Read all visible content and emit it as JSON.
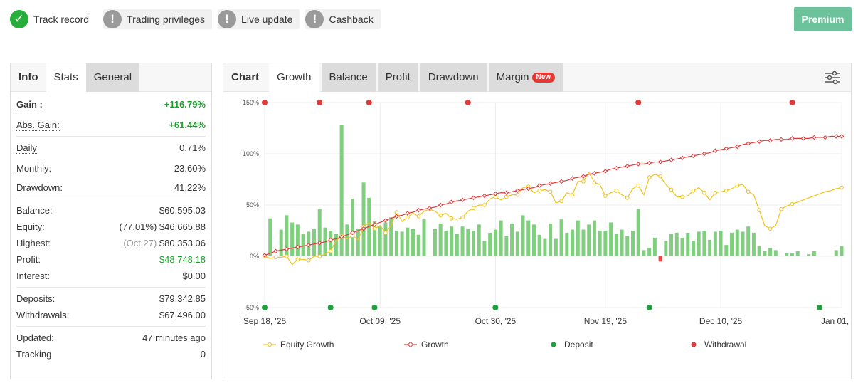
{
  "badges": [
    {
      "label": "Track record",
      "icon": "check-circle-icon",
      "status": "ok"
    },
    {
      "label": "Trading privileges",
      "icon": "exclamation-circle-icon",
      "status": "warn"
    },
    {
      "label": "Live update",
      "icon": "exclamation-circle-icon",
      "status": "warn"
    },
    {
      "label": "Cashback",
      "icon": "exclamation-circle-icon",
      "status": "warn"
    }
  ],
  "premium_label": "Premium",
  "left_tabs": [
    "Info",
    "Stats",
    "General"
  ],
  "stats": {
    "gain_label": "Gain :",
    "gain_value": "+116.79%",
    "abs_gain_label": "Abs. Gain:",
    "abs_gain_value": "+61.44%",
    "daily_label": "Daily",
    "daily_value": "0.71%",
    "monthly_label": "Monthly:",
    "monthly_value": "23.60%",
    "drawdown_label": "Drawdown:",
    "drawdown_value": "41.22%",
    "balance_label": "Balance:",
    "balance_value": "$60,595.03",
    "equity_label": "Equity:",
    "equity_pct": "(77.01%)",
    "equity_value": "$46,665.88",
    "highest_label": "Highest:",
    "highest_date": "(Oct 27)",
    "highest_value": "$80,353.06",
    "profit_label": "Profit:",
    "profit_value": "$48,748.18",
    "interest_label": "Interest:",
    "interest_value": "$0.00",
    "deposits_label": "Deposits:",
    "deposits_value": "$79,342.85",
    "withdrawals_label": "Withdrawals:",
    "withdrawals_value": "$67,496.00",
    "updated_label": "Updated:",
    "updated_value": "47 minutes ago",
    "tracking_label": "Tracking",
    "tracking_value": "0"
  },
  "right_tabs": [
    "Chart",
    "Growth",
    "Balance",
    "Profit",
    "Drawdown",
    "Margin"
  ],
  "new_tag": "New",
  "colors": {
    "growth": "#e03a3a",
    "equity": "#f2c21b",
    "bars": "#7fcf7f",
    "bars_neg": "#f04848",
    "deposit": "#1aa33a",
    "withdrawal": "#e03a3a",
    "premium": "#6cc39b"
  },
  "chart_data": {
    "type": "line",
    "x_labels": [
      "Sep 18, '25",
      "Oct 09, '25",
      "Oct 30, '25",
      "Nov 19, '25",
      "Dec 10, '25",
      "Jan 01, '26"
    ],
    "x_label_days": [
      0,
      21,
      42,
      62,
      83,
      105
    ],
    "y_ticks": [
      "150%",
      "100%",
      "50%",
      "0%",
      "-50%"
    ],
    "y_tick_values": [
      150,
      100,
      50,
      0,
      -50
    ],
    "ylim": [
      -50,
      150
    ],
    "legend": [
      "Equity Growth",
      "Growth",
      "Deposit",
      "Withdrawal"
    ],
    "growth": [
      1,
      3,
      5,
      6,
      7,
      8,
      9,
      10,
      11,
      12,
      13,
      14,
      16,
      17,
      19,
      21,
      23,
      25,
      27,
      29,
      31,
      33,
      35,
      37,
      39,
      40,
      42,
      43,
      45,
      46,
      47,
      48,
      50,
      51,
      53,
      54,
      55,
      56,
      57,
      58,
      59,
      60,
      61,
      62,
      62,
      63,
      64,
      65,
      66,
      67,
      69,
      70,
      71,
      72,
      73,
      74,
      76,
      77,
      78,
      80,
      81,
      82,
      83,
      85,
      86,
      87,
      88,
      89,
      90,
      90,
      91,
      92,
      92,
      93,
      94,
      95,
      96,
      97,
      98,
      99,
      100,
      101,
      103,
      104,
      105,
      106,
      107,
      109,
      110,
      111,
      112,
      113,
      113,
      114,
      114,
      114,
      115,
      115,
      115,
      115,
      116,
      116,
      116,
      117,
      117,
      117
    ],
    "equity": [
      0,
      -2,
      -1,
      -1,
      0,
      -8,
      -3,
      -3,
      -4,
      0,
      0,
      2,
      5,
      15,
      20,
      17,
      20,
      16,
      29,
      33,
      27,
      30,
      23,
      30,
      43,
      34,
      38,
      42,
      39,
      44,
      46,
      44,
      40,
      42,
      37,
      36,
      38,
      44,
      47,
      50,
      50,
      56,
      58,
      55,
      58,
      60,
      60,
      67,
      68,
      62,
      64,
      65,
      63,
      52,
      54,
      62,
      60,
      73,
      73,
      82,
      72,
      70,
      59,
      62,
      64,
      60,
      57,
      66,
      69,
      60,
      77,
      80,
      78,
      70,
      65,
      58,
      58,
      59,
      64,
      67,
      62,
      55,
      62,
      63,
      64,
      66,
      69,
      70,
      63,
      60,
      45,
      30,
      27,
      30,
      46,
      49,
      51,
      53,
      55,
      57,
      59,
      61,
      63,
      64,
      66,
      67
    ],
    "bars": [
      {
        "d": 1,
        "v": 37
      },
      {
        "d": 3,
        "v": 26
      },
      {
        "d": 4,
        "v": 40
      },
      {
        "d": 5,
        "v": 33
      },
      {
        "d": 6,
        "v": 31
      },
      {
        "d": 7,
        "v": 22
      },
      {
        "d": 8,
        "v": 24
      },
      {
        "d": 9,
        "v": 27
      },
      {
        "d": 10,
        "v": 46
      },
      {
        "d": 11,
        "v": 28
      },
      {
        "d": 12,
        "v": 25
      },
      {
        "d": 13,
        "v": 22
      },
      {
        "d": 14,
        "v": 128
      },
      {
        "d": 15,
        "v": 31
      },
      {
        "d": 16,
        "v": 56
      },
      {
        "d": 17,
        "v": 27
      },
      {
        "d": 18,
        "v": 72
      },
      {
        "d": 19,
        "v": 57
      },
      {
        "d": 20,
        "v": 34
      },
      {
        "d": 21,
        "v": 29
      },
      {
        "d": 22,
        "v": 33
      },
      {
        "d": 23,
        "v": 38
      },
      {
        "d": 24,
        "v": 25
      },
      {
        "d": 25,
        "v": 24
      },
      {
        "d": 26,
        "v": 28
      },
      {
        "d": 27,
        "v": 27
      },
      {
        "d": 28,
        "v": 21
      },
      {
        "d": 29,
        "v": 36
      },
      {
        "d": 31,
        "v": 27
      },
      {
        "d": 32,
        "v": 32
      },
      {
        "d": 33,
        "v": 25
      },
      {
        "d": 34,
        "v": 29
      },
      {
        "d": 35,
        "v": 22
      },
      {
        "d": 36,
        "v": 29
      },
      {
        "d": 37,
        "v": 27
      },
      {
        "d": 38,
        "v": 25
      },
      {
        "d": 39,
        "v": 31
      },
      {
        "d": 40,
        "v": 15
      },
      {
        "d": 41,
        "v": 23
      },
      {
        "d": 42,
        "v": 26
      },
      {
        "d": 43,
        "v": 35
      },
      {
        "d": 44,
        "v": 20
      },
      {
        "d": 45,
        "v": 32
      },
      {
        "d": 46,
        "v": 24
      },
      {
        "d": 47,
        "v": 40
      },
      {
        "d": 48,
        "v": 35
      },
      {
        "d": 49,
        "v": 31
      },
      {
        "d": 50,
        "v": 21
      },
      {
        "d": 51,
        "v": 17
      },
      {
        "d": 52,
        "v": 32
      },
      {
        "d": 53,
        "v": 17
      },
      {
        "d": 54,
        "v": 36
      },
      {
        "d": 55,
        "v": 23
      },
      {
        "d": 56,
        "v": 26
      },
      {
        "d": 57,
        "v": 35
      },
      {
        "d": 58,
        "v": 26
      },
      {
        "d": 59,
        "v": 31
      },
      {
        "d": 60,
        "v": 35
      },
      {
        "d": 61,
        "v": 25
      },
      {
        "d": 62,
        "v": 25
      },
      {
        "d": 63,
        "v": 33
      },
      {
        "d": 64,
        "v": 22
      },
      {
        "d": 65,
        "v": 26
      },
      {
        "d": 66,
        "v": 20
      },
      {
        "d": 67,
        "v": 25
      },
      {
        "d": 68,
        "v": 46
      },
      {
        "d": 69,
        "v": 6
      },
      {
        "d": 70,
        "v": 8
      },
      {
        "d": 71,
        "v": 18
      },
      {
        "d": 72,
        "v": -5
      },
      {
        "d": 73,
        "v": 15
      },
      {
        "d": 74,
        "v": 22
      },
      {
        "d": 75,
        "v": 23
      },
      {
        "d": 76,
        "v": 18
      },
      {
        "d": 77,
        "v": 23
      },
      {
        "d": 78,
        "v": 15
      },
      {
        "d": 79,
        "v": 24
      },
      {
        "d": 80,
        "v": 25
      },
      {
        "d": 81,
        "v": 16
      },
      {
        "d": 82,
        "v": 24
      },
      {
        "d": 83,
        "v": 25
      },
      {
        "d": 84,
        "v": 11
      },
      {
        "d": 85,
        "v": 23
      },
      {
        "d": 86,
        "v": 26
      },
      {
        "d": 87,
        "v": 24
      },
      {
        "d": 88,
        "v": 29
      },
      {
        "d": 89,
        "v": 23
      },
      {
        "d": 90,
        "v": 10
      },
      {
        "d": 91,
        "v": 5
      },
      {
        "d": 92,
        "v": 8
      },
      {
        "d": 93,
        "v": 6
      },
      {
        "d": 95,
        "v": 3
      },
      {
        "d": 96,
        "v": 3
      },
      {
        "d": 97,
        "v": 5
      },
      {
        "d": 99,
        "v": 2
      },
      {
        "d": 100,
        "v": 5
      },
      {
        "d": 104,
        "v": 6
      },
      {
        "d": 105,
        "v": 10
      }
    ],
    "withdrawals_days": [
      0,
      10,
      19,
      37,
      68,
      96
    ],
    "deposits_days": [
      0,
      12,
      20,
      42,
      70,
      101
    ]
  }
}
